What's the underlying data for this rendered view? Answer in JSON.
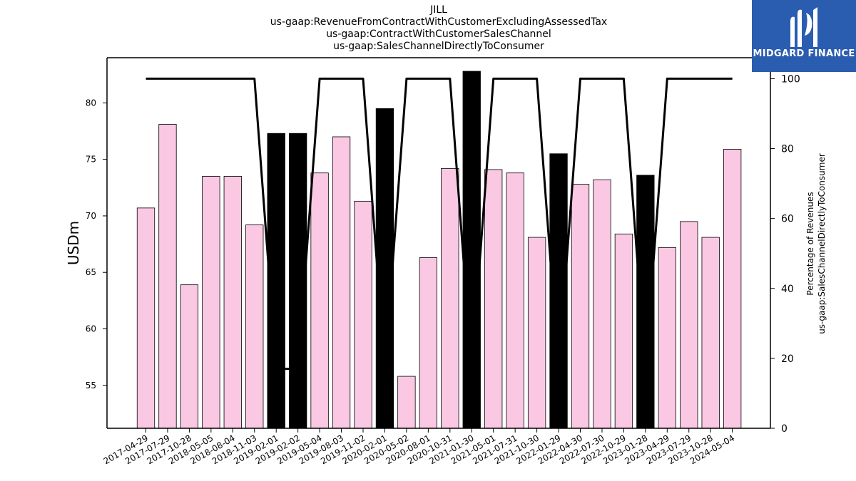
{
  "titles": {
    "line1": "JILL",
    "line2": "us-gaap:RevenueFromContractWithCustomerExcludingAssessedTax",
    "line3": "us-gaap:ContractWithCustomerSalesChannel",
    "line4": "us-gaap:SalesChannelDirectlyToConsumer"
  },
  "logo": {
    "text": "MIDGARD FINANCE",
    "icon": "midgard-logo-icon",
    "color": "#2a5db0"
  },
  "colors": {
    "bar_pink": "#fbc8e3",
    "bar_black": "#000000",
    "line": "#000000"
  },
  "chart_data": {
    "type": "bar",
    "title": "JILL",
    "ylabel": "USDm",
    "y2label": "Percentage of Revenues\nus-gaap:SalesChannelDirectlyToConsumer",
    "ylim": [
      51.2,
      84
    ],
    "y2lim": [
      0,
      106
    ],
    "yticks": [
      55,
      60,
      65,
      70,
      75,
      80
    ],
    "y2ticks": [
      0,
      20,
      40,
      60,
      80,
      100
    ],
    "categories": [
      "2017-04-29",
      "2017-07-29",
      "2017-10-28",
      "2018-05-05",
      "2018-08-04",
      "2018-11-03",
      "2019-02-01",
      "2019-02-02",
      "2019-05-04",
      "2019-08-03",
      "2019-11-02",
      "2020-02-01",
      "2020-05-02",
      "2020-08-01",
      "2020-10-31",
      "2021-01-30",
      "2021-05-01",
      "2021-07-31",
      "2021-10-30",
      "2022-01-29",
      "2022-04-30",
      "2022-07-30",
      "2022-10-29",
      "2023-01-28",
      "2023-04-29",
      "2023-07-29",
      "2023-10-28",
      "2024-05-04"
    ],
    "series": [
      {
        "values": [
          70.7,
          78.1,
          63.9,
          73.5,
          73.5,
          69.2,
          77.3,
          77.3,
          73.8,
          77.0,
          71.3,
          79.5,
          55.8,
          66.3,
          74.2,
          82.8,
          74.1,
          73.8,
          68.1,
          75.5,
          72.8,
          73.2,
          68.4,
          73.6,
          67.2,
          69.5,
          68.1,
          75.9
        ],
        "highlight": [
          false,
          false,
          false,
          false,
          false,
          false,
          true,
          true,
          false,
          false,
          false,
          true,
          false,
          false,
          false,
          true,
          false,
          false,
          false,
          true,
          false,
          false,
          false,
          true,
          false,
          false,
          false,
          false
        ]
      },
      {
        "axis": "right",
        "values": [
          100,
          100,
          100,
          100,
          100,
          100,
          17,
          17,
          100,
          100,
          100,
          17,
          100,
          100,
          100,
          17,
          100,
          100,
          100,
          17,
          100,
          100,
          100,
          17,
          100,
          100,
          100,
          100
        ]
      }
    ]
  }
}
